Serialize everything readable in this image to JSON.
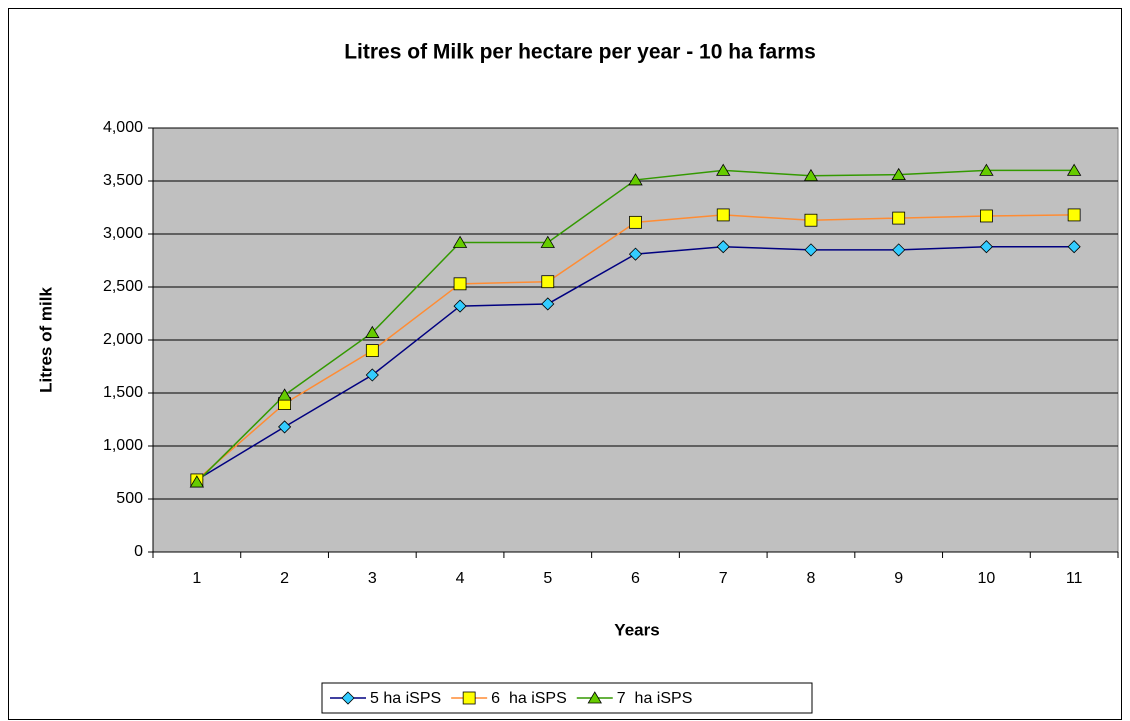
{
  "chart_data": {
    "type": "line",
    "title": "Litres of Milk per hectare per year - 10 ha farms",
    "x_label": "Years",
    "y_label": "Litres of milk",
    "categories": [
      "1",
      "2",
      "3",
      "4",
      "5",
      "6",
      "7",
      "8",
      "9",
      "10",
      "11"
    ],
    "series": [
      {
        "name": "5 ha iSPS",
        "color": "#000080",
        "marker": "diamond",
        "marker_color": "#33ccff",
        "values": [
          680,
          1180,
          1670,
          2320,
          2340,
          2810,
          2880,
          2850,
          2850,
          2880,
          2880
        ]
      },
      {
        "name": "6  ha iSPS",
        "color": "#ff8c33",
        "marker": "square",
        "marker_color": "#ffff00",
        "values": [
          680,
          1400,
          1900,
          2530,
          2550,
          3110,
          3180,
          3130,
          3150,
          3170,
          3180
        ]
      },
      {
        "name": "7  ha iSPS",
        "color": "#339900",
        "marker": "triangle",
        "marker_color": "#66cc00",
        "values": [
          660,
          1480,
          2070,
          2920,
          2920,
          3510,
          3600,
          3550,
          3560,
          3600,
          3600
        ]
      }
    ],
    "ylim": [
      0,
      4000
    ],
    "yticks": [
      0,
      500,
      {
        "value": 1000,
        "label": "1,000"
      },
      {
        "value": 1500,
        "label": "1,500"
      },
      {
        "value": 2000,
        "label": "2,000"
      },
      {
        "value": 2500,
        "label": "2,500"
      },
      {
        "value": 3000,
        "label": "3,000"
      },
      {
        "value": 3500,
        "label": "3,500"
      },
      {
        "value": 4000,
        "label": "4,000"
      }
    ],
    "grid": true,
    "plot_background": "#c0c0c0",
    "legend": "bottom"
  }
}
